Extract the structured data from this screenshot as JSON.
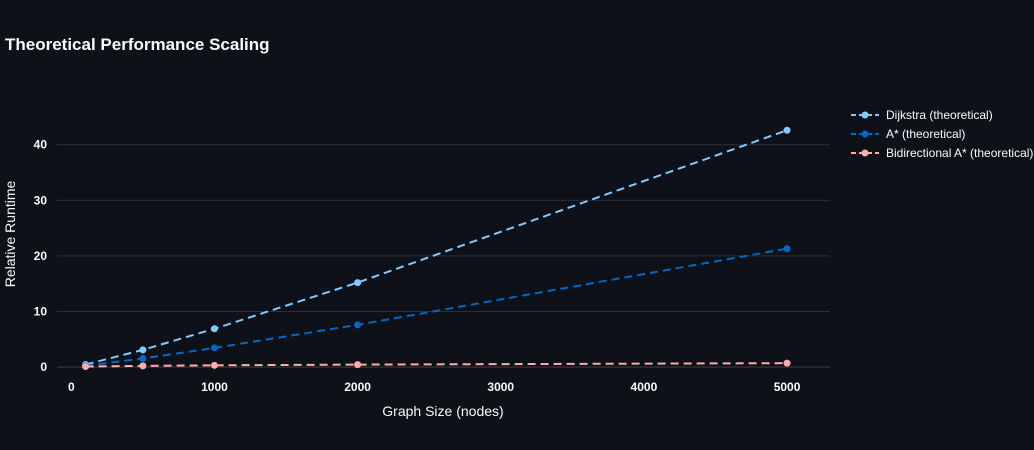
{
  "chart_data": {
    "type": "line",
    "title": "Theoretical Performance Scaling",
    "xlabel": "Graph Size (nodes)",
    "ylabel": "Relative Runtime",
    "xlim": [
      -100,
      5300
    ],
    "ylim": [
      -2.5,
      47.5
    ],
    "xticks": [
      0,
      1000,
      2000,
      3000,
      4000,
      5000
    ],
    "yticks": [
      0,
      10,
      20,
      30,
      40
    ],
    "grid": true,
    "legend_position": "top-right",
    "x": [
      100,
      500,
      1000,
      2000,
      5000
    ],
    "series": [
      {
        "name": "Dijkstra (theoretical)",
        "color": "#83c9ff",
        "values": [
          0.46,
          3.1,
          6.9,
          15.2,
          42.6
        ]
      },
      {
        "name": "A* (theoretical)",
        "color": "#0068c9",
        "values": [
          0.23,
          1.55,
          3.45,
          7.6,
          21.3
        ]
      },
      {
        "name": "Bidirectional A* (theoretical)",
        "color": "#ffabab",
        "values": [
          0.1,
          0.22,
          0.32,
          0.45,
          0.71
        ]
      }
    ]
  }
}
